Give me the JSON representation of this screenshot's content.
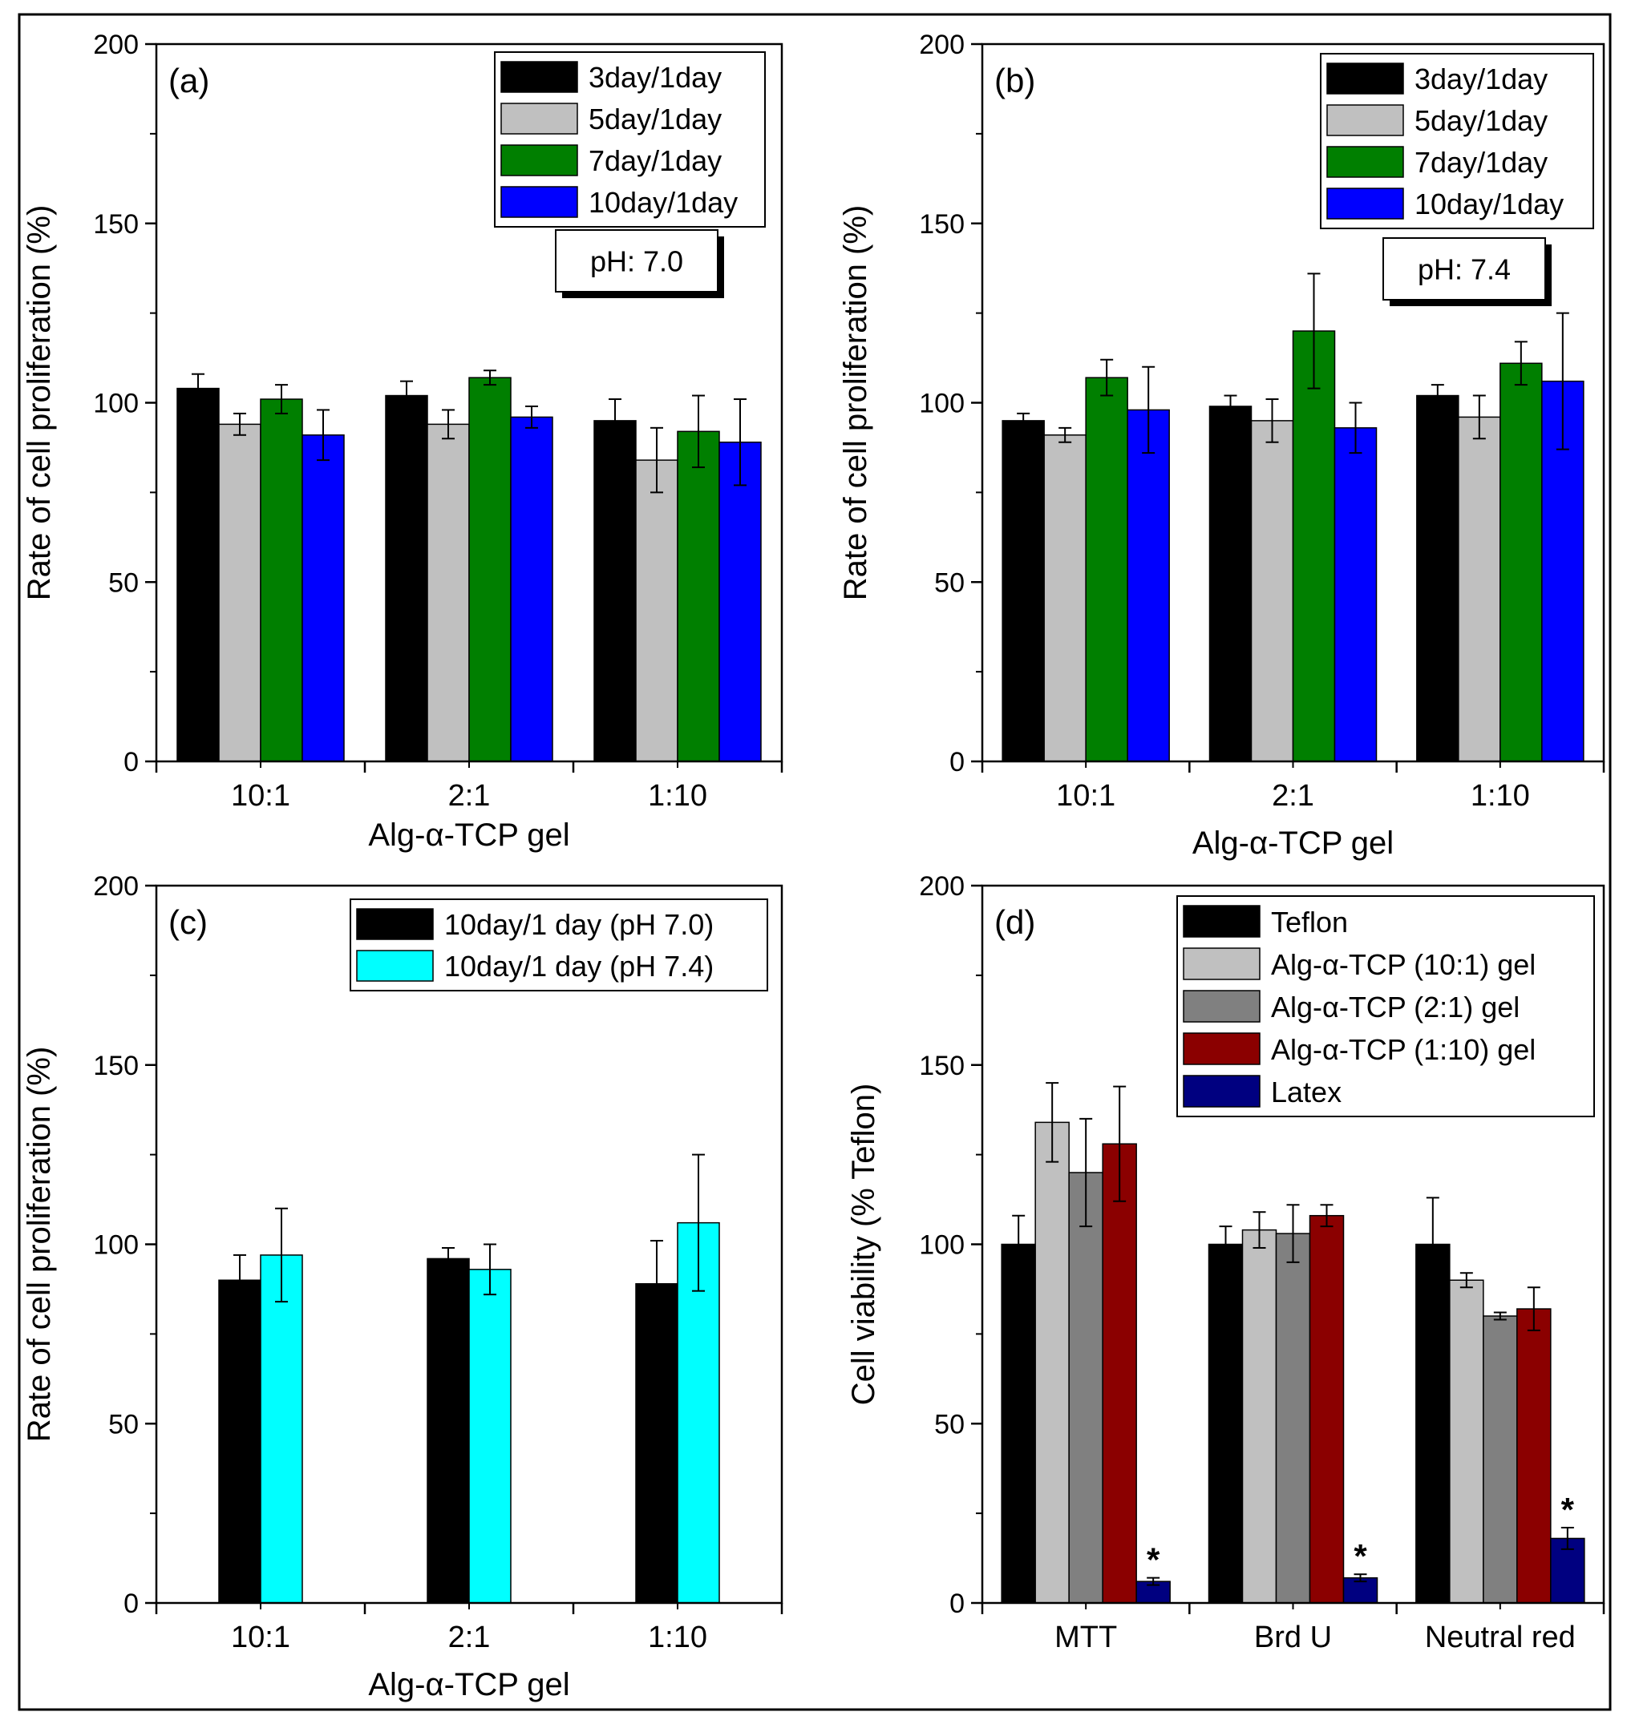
{
  "chart_data": [
    {
      "type": "bar",
      "panel_label": "(a)",
      "annotation": "pH: 7.0",
      "categories": [
        "10:1",
        "2:1",
        "1:10"
      ],
      "xlabel": "Alg-α-TCP gel",
      "ylabel": "Rate of cell proliferation (%)",
      "ylim": [
        0,
        200
      ],
      "yticks": [
        "0",
        "50",
        "100",
        "150",
        "200"
      ],
      "legend_position": "top-right",
      "series": [
        {
          "name": "3day/1day",
          "color": "#000000",
          "values": [
            104,
            102,
            95
          ],
          "errors": [
            4,
            4,
            6
          ]
        },
        {
          "name": "5day/1day",
          "color": "#c0c0c0",
          "values": [
            94,
            94,
            84
          ],
          "errors": [
            3,
            4,
            9
          ]
        },
        {
          "name": "7day/1day",
          "color": "#007f00",
          "values": [
            101,
            107,
            92
          ],
          "errors": [
            4,
            2,
            10
          ]
        },
        {
          "name": "10day/1day",
          "color": "#0000ff",
          "values": [
            91,
            96,
            89
          ],
          "errors": [
            7,
            3,
            12
          ]
        }
      ]
    },
    {
      "type": "bar",
      "panel_label": "(b)",
      "annotation": "pH: 7.4",
      "categories": [
        "10:1",
        "2:1",
        "1:10"
      ],
      "xlabel": "Alg-α-TCP gel",
      "ylabel": "Rate of cell proliferation (%)",
      "ylim": [
        0,
        200
      ],
      "yticks": [
        "0",
        "50",
        "100",
        "150",
        "200"
      ],
      "legend_position": "top-right",
      "series": [
        {
          "name": "3day/1day",
          "color": "#000000",
          "values": [
            95,
            99,
            102
          ],
          "errors": [
            2,
            3,
            3
          ]
        },
        {
          "name": "5day/1day",
          "color": "#c0c0c0",
          "values": [
            91,
            95,
            96
          ],
          "errors": [
            2,
            6,
            6
          ]
        },
        {
          "name": "7day/1day",
          "color": "#007f00",
          "values": [
            107,
            120,
            111
          ],
          "errors": [
            5,
            16,
            6
          ]
        },
        {
          "name": "10day/1day",
          "color": "#0000ff",
          "values": [
            98,
            93,
            106
          ],
          "errors": [
            12,
            7,
            19
          ]
        }
      ]
    },
    {
      "type": "bar",
      "panel_label": "(c)",
      "annotation": "",
      "categories": [
        "10:1",
        "2:1",
        "1:10"
      ],
      "xlabel": "Alg-α-TCP gel",
      "ylabel": "Rate of cell proliferation (%)",
      "ylim": [
        0,
        200
      ],
      "yticks": [
        "0",
        "50",
        "100",
        "150",
        "200"
      ],
      "legend_position": "top-right",
      "series": [
        {
          "name": "10day/1 day (pH 7.0)",
          "color": "#000000",
          "values": [
            90,
            96,
            89
          ],
          "errors": [
            7,
            3,
            12
          ]
        },
        {
          "name": "10day/1 day (pH 7.4)",
          "color": "#00ffff",
          "values": [
            97,
            93,
            106
          ],
          "errors": [
            13,
            7,
            19
          ]
        }
      ]
    },
    {
      "type": "bar",
      "panel_label": "(d)",
      "annotation": "",
      "categories": [
        "MTT",
        "Brd U",
        "Neutral red"
      ],
      "xlabel": "",
      "ylabel": "Cell viability (% Teflon)",
      "ylim": [
        0,
        200
      ],
      "yticks": [
        "0",
        "50",
        "100",
        "150",
        "200"
      ],
      "legend_position": "top-right",
      "significance_marker": "*",
      "series": [
        {
          "name": "Teflon",
          "color": "#000000",
          "values": [
            100,
            100,
            100
          ],
          "errors": [
            8,
            5,
            13
          ]
        },
        {
          "name": "Alg-α-TCP (10:1) gel",
          "color": "#c0c0c0",
          "values": [
            134,
            104,
            90
          ],
          "errors": [
            11,
            5,
            2
          ]
        },
        {
          "name": "Alg-α-TCP (2:1) gel",
          "color": "#808080",
          "values": [
            120,
            103,
            80
          ],
          "errors": [
            15,
            8,
            1
          ]
        },
        {
          "name": "Alg-α-TCP (1:10) gel",
          "color": "#8b0000",
          "values": [
            128,
            108,
            82
          ],
          "errors": [
            16,
            3,
            6
          ]
        },
        {
          "name": "Latex",
          "color": "#000080",
          "values": [
            6,
            7,
            18
          ],
          "errors": [
            1,
            1,
            3
          ],
          "significant": [
            true,
            true,
            true
          ]
        }
      ]
    }
  ]
}
